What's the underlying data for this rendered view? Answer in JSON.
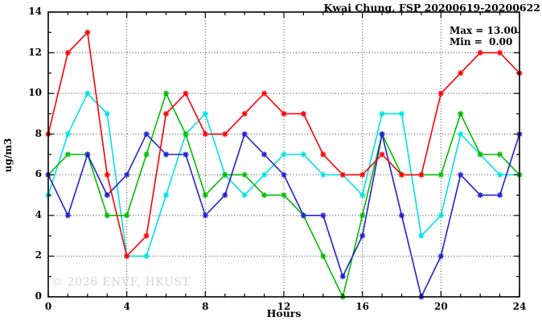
{
  "title": "Kwai Chung, FSP 20200619-20200622",
  "stats": {
    "max_label": "Max = 13.00",
    "min_label": "Min =  0.00"
  },
  "watermark": "© 2026 ENVF, HKUST",
  "chart_data": {
    "type": "line",
    "title": "Kwai Chung, FSP 20200619-20200622",
    "xlabel": "Hours",
    "ylabel": "ug/m3",
    "xlim": [
      0,
      24
    ],
    "ylim": [
      0,
      14
    ],
    "x_major_ticks": [
      0,
      4,
      8,
      12,
      16,
      20,
      24
    ],
    "x_minor_step": 1,
    "y_major_ticks": [
      0,
      2,
      4,
      6,
      8,
      10,
      12,
      14
    ],
    "y_minor_step": 1,
    "grid": "dotted",
    "legend_position": "none",
    "annotations": {
      "max": 13.0,
      "min": 0.0
    },
    "x": [
      0,
      1,
      2,
      3,
      4,
      5,
      6,
      7,
      8,
      9,
      10,
      11,
      12,
      13,
      14,
      15,
      16,
      17,
      18,
      19,
      20,
      21,
      22,
      23,
      24
    ],
    "series": [
      {
        "name": "series-cyan",
        "color": "#00e2e2",
        "values": [
          5,
          8,
          10,
          9,
          2,
          2,
          5,
          8,
          9,
          6,
          5,
          6,
          7,
          7,
          6,
          6,
          5,
          9,
          9,
          3,
          4,
          8,
          7,
          6,
          6
        ]
      },
      {
        "name": "series-green",
        "color": "#00bd00",
        "values": [
          6,
          7,
          7,
          4,
          4,
          7,
          10,
          8,
          5,
          6,
          6,
          5,
          5,
          4,
          2,
          0,
          4,
          8,
          6,
          6,
          6,
          9,
          7,
          7,
          6
        ]
      },
      {
        "name": "series-blue",
        "color": "#2121cf",
        "values": [
          6,
          4,
          7,
          5,
          6,
          8,
          7,
          7,
          4,
          5,
          8,
          7,
          6,
          4,
          4,
          1,
          3,
          8,
          4,
          0,
          2,
          6,
          5,
          5,
          8
        ]
      },
      {
        "name": "series-red",
        "color": "#fb0006",
        "values": [
          8,
          12,
          13,
          6,
          2,
          3,
          9,
          10,
          8,
          8,
          9,
          10,
          9,
          9,
          7,
          6,
          6,
          7,
          6,
          6,
          10,
          11,
          12,
          12,
          11
        ]
      }
    ]
  },
  "layout_colors": {
    "axis": "#000000",
    "grid": "#404040",
    "watermark": "#d2d2d2"
  }
}
